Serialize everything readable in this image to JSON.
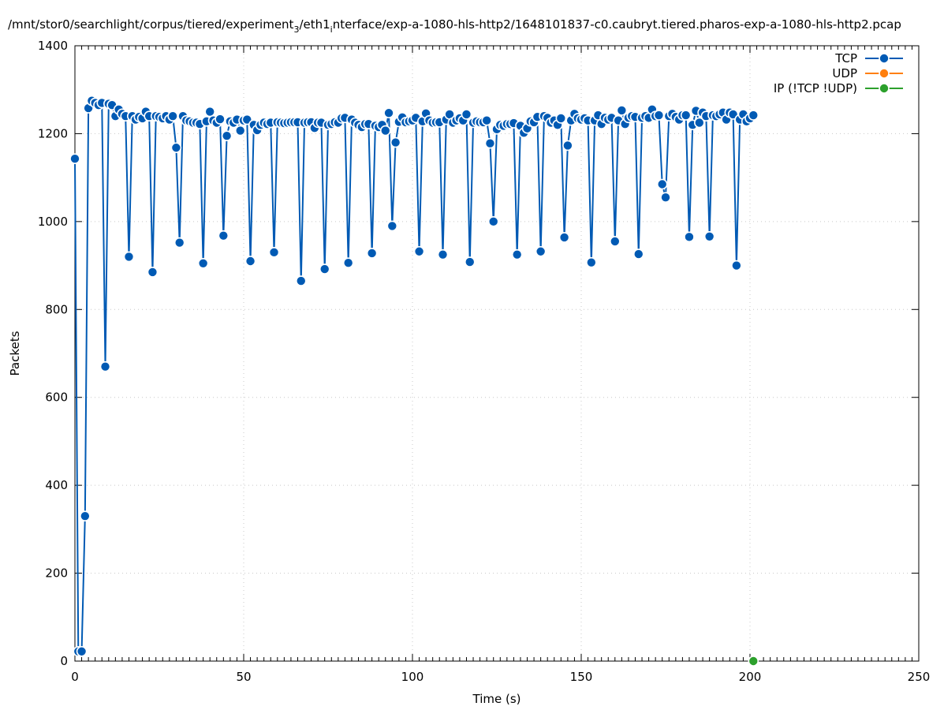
{
  "chart_data": {
    "type": "line",
    "title_main": "/mnt/stor0/searchlight/corpus/tiered/experiment",
    "title_sub1": "3",
    "title_mid": "/eth1",
    "title_sub2": "i",
    "title_end": "nterface/exp-a-1080-hls-http2/1648101837-c0.caubryt.tiered.pharos-exp-a-1080-hls-http2.pcap",
    "xlabel": "Time (s)",
    "ylabel": "Packets",
    "xlim": [
      0,
      250
    ],
    "ylim": [
      0,
      1400
    ],
    "xticks": [
      0,
      50,
      100,
      150,
      200,
      250
    ],
    "yticks": [
      0,
      200,
      400,
      600,
      800,
      1000,
      1200,
      1400
    ],
    "x_minor_step": 2,
    "grid": true,
    "legend_position": "top-right",
    "series": [
      {
        "name": "TCP",
        "color": "#005ab4",
        "points": [
          [
            0,
            1143
          ],
          [
            1,
            22
          ],
          [
            2,
            22
          ],
          [
            3,
            330
          ],
          [
            4,
            1258
          ],
          [
            5,
            1275
          ],
          [
            6,
            1270
          ],
          [
            7,
            1265
          ],
          [
            8,
            1270
          ],
          [
            9,
            670
          ],
          [
            10,
            1268
          ],
          [
            11,
            1265
          ],
          [
            12,
            1240
          ],
          [
            13,
            1255
          ],
          [
            14,
            1245
          ],
          [
            15,
            1240
          ],
          [
            16,
            920
          ],
          [
            17,
            1240
          ],
          [
            18,
            1232
          ],
          [
            19,
            1238
          ],
          [
            20,
            1235
          ],
          [
            21,
            1250
          ],
          [
            22,
            1240
          ],
          [
            23,
            885
          ],
          [
            24,
            1240
          ],
          [
            25,
            1238
          ],
          [
            26,
            1235
          ],
          [
            27,
            1240
          ],
          [
            28,
            1232
          ],
          [
            29,
            1240
          ],
          [
            30,
            1168
          ],
          [
            31,
            952
          ],
          [
            32,
            1240
          ],
          [
            33,
            1230
          ],
          [
            34,
            1228
          ],
          [
            35,
            1225
          ],
          [
            36,
            1225
          ],
          [
            37,
            1222
          ],
          [
            38,
            905
          ],
          [
            39,
            1228
          ],
          [
            40,
            1250
          ],
          [
            41,
            1230
          ],
          [
            42,
            1225
          ],
          [
            43,
            1233
          ],
          [
            44,
            968
          ],
          [
            45,
            1195
          ],
          [
            46,
            1228
          ],
          [
            47,
            1225
          ],
          [
            48,
            1232
          ],
          [
            49,
            1207
          ],
          [
            50,
            1230
          ],
          [
            51,
            1232
          ],
          [
            52,
            910
          ],
          [
            53,
            1220
          ],
          [
            54,
            1208
          ],
          [
            55,
            1220
          ],
          [
            56,
            1225
          ],
          [
            57,
            1222
          ],
          [
            58,
            1225
          ],
          [
            59,
            930
          ],
          [
            60,
            1226
          ],
          [
            61,
            1225
          ],
          [
            62,
            1224
          ],
          [
            63,
            1225
          ],
          [
            64,
            1226
          ],
          [
            65,
            1226
          ],
          [
            66,
            1226
          ],
          [
            67,
            865
          ],
          [
            68,
            1225
          ],
          [
            69,
            1226
          ],
          [
            70,
            1226
          ],
          [
            71,
            1213
          ],
          [
            72,
            1225
          ],
          [
            73,
            1225
          ],
          [
            74,
            892
          ],
          [
            75,
            1220
          ],
          [
            76,
            1222
          ],
          [
            77,
            1226
          ],
          [
            78,
            1225
          ],
          [
            79,
            1235
          ],
          [
            80,
            1236
          ],
          [
            81,
            906
          ],
          [
            82,
            1232
          ],
          [
            83,
            1225
          ],
          [
            84,
            1220
          ],
          [
            85,
            1215
          ],
          [
            86,
            1222
          ],
          [
            87,
            1222
          ],
          [
            88,
            928
          ],
          [
            89,
            1218
          ],
          [
            90,
            1215
          ],
          [
            91,
            1220
          ],
          [
            92,
            1207
          ],
          [
            93,
            1247
          ],
          [
            94,
            990
          ],
          [
            95,
            1180
          ],
          [
            96,
            1227
          ],
          [
            97,
            1237
          ],
          [
            98,
            1226
          ],
          [
            99,
            1228
          ],
          [
            100,
            1230
          ],
          [
            101,
            1236
          ],
          [
            102,
            932
          ],
          [
            103,
            1228
          ],
          [
            104,
            1246
          ],
          [
            105,
            1230
          ],
          [
            106,
            1225
          ],
          [
            107,
            1226
          ],
          [
            108,
            1226
          ],
          [
            109,
            925
          ],
          [
            110,
            1232
          ],
          [
            111,
            1244
          ],
          [
            112,
            1225
          ],
          [
            113,
            1230
          ],
          [
            114,
            1235
          ],
          [
            115,
            1230
          ],
          [
            116,
            1244
          ],
          [
            117,
            908
          ],
          [
            118,
            1225
          ],
          [
            119,
            1228
          ],
          [
            120,
            1226
          ],
          [
            121,
            1226
          ],
          [
            122,
            1230
          ],
          [
            123,
            1178
          ],
          [
            124,
            1000
          ],
          [
            125,
            1210
          ],
          [
            126,
            1220
          ],
          [
            127,
            1218
          ],
          [
            128,
            1222
          ],
          [
            129,
            1222
          ],
          [
            130,
            1224
          ],
          [
            131,
            925
          ],
          [
            132,
            1218
          ],
          [
            133,
            1202
          ],
          [
            134,
            1212
          ],
          [
            135,
            1228
          ],
          [
            136,
            1226
          ],
          [
            137,
            1238
          ],
          [
            138,
            932
          ],
          [
            139,
            1240
          ],
          [
            140,
            1236
          ],
          [
            141,
            1225
          ],
          [
            142,
            1230
          ],
          [
            143,
            1220
          ],
          [
            144,
            1235
          ],
          [
            145,
            964
          ],
          [
            146,
            1173
          ],
          [
            147,
            1230
          ],
          [
            148,
            1245
          ],
          [
            149,
            1235
          ],
          [
            150,
            1232
          ],
          [
            151,
            1235
          ],
          [
            152,
            1230
          ],
          [
            153,
            907
          ],
          [
            154,
            1230
          ],
          [
            155,
            1242
          ],
          [
            156,
            1222
          ],
          [
            157,
            1236
          ],
          [
            158,
            1232
          ],
          [
            159,
            1236
          ],
          [
            160,
            955
          ],
          [
            161,
            1230
          ],
          [
            162,
            1253
          ],
          [
            163,
            1222
          ],
          [
            164,
            1236
          ],
          [
            165,
            1240
          ],
          [
            166,
            1238
          ],
          [
            167,
            926
          ],
          [
            168,
            1236
          ],
          [
            169,
            1240
          ],
          [
            170,
            1236
          ],
          [
            171,
            1255
          ],
          [
            172,
            1240
          ],
          [
            173,
            1242
          ],
          [
            174,
            1085
          ],
          [
            175,
            1055
          ],
          [
            176,
            1240
          ],
          [
            177,
            1245
          ],
          [
            178,
            1238
          ],
          [
            179,
            1232
          ],
          [
            180,
            1242
          ],
          [
            181,
            1242
          ],
          [
            182,
            965
          ],
          [
            183,
            1220
          ],
          [
            184,
            1252
          ],
          [
            185,
            1225
          ],
          [
            186,
            1248
          ],
          [
            187,
            1240
          ],
          [
            188,
            966
          ],
          [
            189,
            1242
          ],
          [
            190,
            1240
          ],
          [
            191,
            1244
          ],
          [
            192,
            1248
          ],
          [
            193,
            1232
          ],
          [
            194,
            1248
          ],
          [
            195,
            1244
          ],
          [
            196,
            900
          ],
          [
            197,
            1232
          ],
          [
            198,
            1244
          ],
          [
            199,
            1228
          ],
          [
            200,
            1235
          ],
          [
            201,
            1242
          ]
        ]
      },
      {
        "name": "UDP",
        "color": "#ff7f0e",
        "points": []
      },
      {
        "name": "IP (!TCP  !UDP)",
        "color": "#2ca02c",
        "points": [
          [
            201,
            0
          ]
        ]
      }
    ]
  }
}
